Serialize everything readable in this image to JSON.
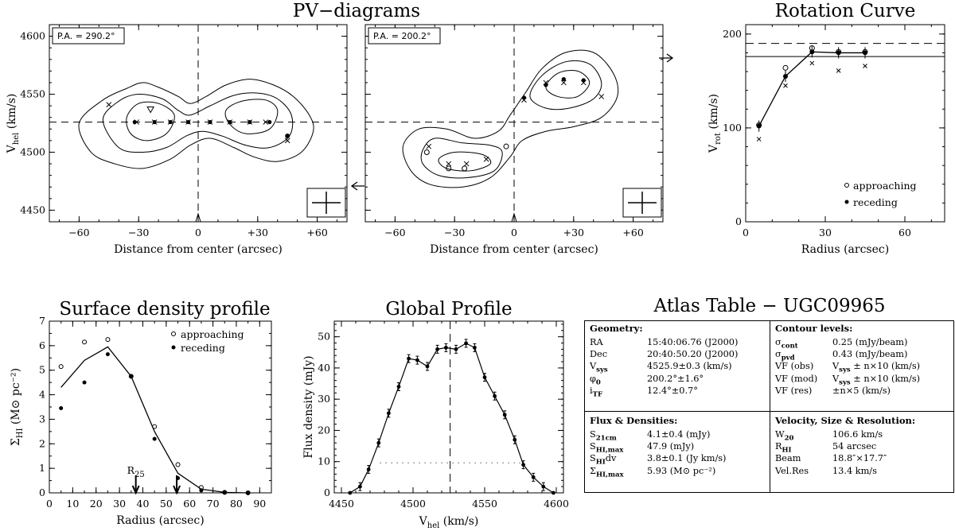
{
  "pv": {
    "title": "PV−diagrams",
    "panels": [
      {
        "pa_label": "P.A. = 290.2°",
        "xlabel": "Distance from center (arcsec)",
        "xticks": [
          "−60",
          "−30",
          "0",
          "+30",
          "+60"
        ]
      },
      {
        "pa_label": "P.A. = 200.2°",
        "xlabel": "Distance from center (arcsec)",
        "xticks": [
          "−60",
          "−30",
          "0",
          "+30",
          "+60"
        ]
      }
    ],
    "ylabel_main": "V",
    "ylabel_sub": "hel",
    "ylabel_unit": " (km/s)",
    "yticks": [
      "4450",
      "4500",
      "4550",
      "4600"
    ]
  },
  "rotation": {
    "title": "Rotation Curve",
    "xlabel": "Radius (arcsec)",
    "ylabel_main": "V",
    "ylabel_sub": "rot",
    "ylabel_unit": " (km/s)",
    "xticks": [
      "0",
      "30",
      "60"
    ],
    "yticks": [
      "0",
      "100",
      "200"
    ],
    "legend": [
      "approaching",
      "receding"
    ]
  },
  "surface": {
    "title": "Surface density profile",
    "xlabel": "Radius (arcsec)",
    "ylabel_main": "Σ",
    "ylabel_sub": "HI",
    "ylabel_unit": " (M⊙ pc⁻²)",
    "xticks": [
      "0",
      "10",
      "20",
      "30",
      "40",
      "50",
      "60",
      "70",
      "80",
      "90"
    ],
    "yticks": [
      "0",
      "1",
      "2",
      "3",
      "4",
      "5",
      "6",
      "7"
    ],
    "legend": [
      "approaching",
      "receding"
    ],
    "r25_main": "R",
    "r25_sub": "25"
  },
  "global": {
    "title": "Global Profile",
    "xlabel_main": "V",
    "xlabel_sub": "hel",
    "xlabel_unit": " (km/s)",
    "ylabel": "Flux density (mJy)",
    "xticks": [
      "4450",
      "4500",
      "4550",
      "4600"
    ],
    "yticks": [
      "0",
      "10",
      "20",
      "30",
      "40",
      "50"
    ]
  },
  "atlas": {
    "title": "Atlas Table − UGC09965",
    "geometry": {
      "heading": "Geometry:",
      "rows": [
        {
          "k": "RA",
          "v": "15:40:06.76 (J2000)"
        },
        {
          "k": "Dec",
          "v": "20:40:50.20 (J2000)"
        },
        {
          "k": "V",
          "ks": "sys",
          "v": "4525.9±0.3 (km/s)"
        },
        {
          "k": "φ",
          "ks": "0",
          "v": "200.2°±1.6°"
        },
        {
          "k": "i",
          "ks": "TF",
          "v": "12.4°±0.7°"
        }
      ]
    },
    "contour": {
      "heading": "Contour levels:",
      "rows": [
        {
          "k": "σ",
          "ks": "cont",
          "v": "0.25 (mJy/beam)"
        },
        {
          "k": "σ",
          "ks": "pvd",
          "v": "0.43 (mJy/beam)"
        },
        {
          "k": "VF (obs)",
          "v": "V",
          "vs": "sys",
          "vr": " ± n×10 (km/s)"
        },
        {
          "k": "VF (mod)",
          "v": "V",
          "vs": "sys",
          "vr": " ± n×10 (km/s)"
        },
        {
          "k": "VF (res)",
          "v": "±n×5 (km/s)"
        }
      ]
    },
    "flux": {
      "heading": "Flux & Densities:",
      "rows": [
        {
          "k": "S",
          "ks": "21cm",
          "v": "4.1±0.4 (mJy)"
        },
        {
          "k": "S",
          "ks": "HI,max",
          "v": "47.9 (mJy)"
        },
        {
          "k": "S",
          "ks": "HI",
          "kr": "dv",
          "v": "3.8±0.1 (Jy km/s)"
        },
        {
          "k": "Σ",
          "ks": "HI,max",
          "v": "5.93 (M⊙ pc⁻²)"
        }
      ]
    },
    "velocity": {
      "heading": "Velocity, Size & Resolution:",
      "rows": [
        {
          "k": "W",
          "ks": "20",
          "v": "106.6 km/s"
        },
        {
          "k": "R",
          "ks": "HI",
          "v": "54 arcsec"
        },
        {
          "k": "Beam",
          "v": "18.8″×17.7″"
        },
        {
          "k": "Vel.Res",
          "v": "13.4 km/s"
        }
      ]
    }
  },
  "chart_data": [
    {
      "type": "scatter",
      "name": "PV-diagram P.A. 290.2",
      "xlim": [
        -75,
        75
      ],
      "ylim": [
        4440,
        4610
      ],
      "vsys": 4525.9,
      "points_dot": [
        [
          -32,
          4526
        ],
        [
          -22,
          4526
        ],
        [
          -14,
          4526
        ],
        [
          -5,
          4526
        ],
        [
          6,
          4526
        ],
        [
          16,
          4526
        ],
        [
          26,
          4526
        ],
        [
          36,
          4526
        ]
      ],
      "points_cross": [
        [
          -45,
          4541
        ],
        [
          -31,
          4526
        ],
        [
          -22,
          4526
        ],
        [
          -14,
          4526
        ],
        [
          -5,
          4526
        ],
        [
          6,
          4526
        ],
        [
          16,
          4526
        ],
        [
          26,
          4526
        ],
        [
          34,
          4526
        ],
        [
          45,
          4510
        ]
      ],
      "points_tri": [
        [
          -24,
          4537
        ]
      ],
      "points_circle_filled": [
        [
          45,
          4514
        ]
      ],
      "contours": [
        [
          [
            -60,
            4525
          ],
          [
            -48,
            4545
          ],
          [
            -36,
            4555
          ],
          [
            -28,
            4560
          ],
          [
            -20,
            4556
          ],
          [
            -10,
            4548
          ],
          [
            -4,
            4542
          ],
          [
            4,
            4548
          ],
          [
            14,
            4558
          ],
          [
            26,
            4563
          ],
          [
            38,
            4558
          ],
          [
            48,
            4548
          ],
          [
            56,
            4532
          ],
          [
            58,
            4518
          ],
          [
            52,
            4500
          ],
          [
            40,
            4492
          ],
          [
            28,
            4496
          ],
          [
            18,
            4504
          ],
          [
            6,
            4512
          ],
          [
            -4,
            4506
          ],
          [
            -14,
            4494
          ],
          [
            -28,
            4486
          ],
          [
            -42,
            4490
          ],
          [
            -54,
            4500
          ]
        ],
        [
          [
            -48,
            4528
          ],
          [
            -40,
            4544
          ],
          [
            -30,
            4550
          ],
          [
            -18,
            4546
          ],
          [
            -10,
            4536
          ],
          [
            -4,
            4532
          ],
          [
            6,
            4540
          ],
          [
            18,
            4549
          ],
          [
            30,
            4551
          ],
          [
            40,
            4546
          ],
          [
            47,
            4532
          ],
          [
            46,
            4514
          ],
          [
            36,
            4504
          ],
          [
            24,
            4506
          ],
          [
            12,
            4514
          ],
          [
            2,
            4518
          ],
          [
            -6,
            4514
          ],
          [
            -16,
            4504
          ],
          [
            -28,
            4500
          ],
          [
            -40,
            4504
          ]
        ],
        [
          [
            -36,
            4530
          ],
          [
            -30,
            4542
          ],
          [
            -20,
            4542
          ],
          [
            -12,
            4532
          ],
          [
            -16,
            4516
          ],
          [
            -26,
            4510
          ],
          [
            -34,
            4516
          ]
        ],
        [
          [
            14,
            4536
          ],
          [
            22,
            4544
          ],
          [
            34,
            4545
          ],
          [
            40,
            4536
          ],
          [
            36,
            4520
          ],
          [
            24,
            4516
          ],
          [
            16,
            4524
          ]
        ]
      ]
    },
    {
      "type": "scatter",
      "name": "PV-diagram P.A. 200.2",
      "xlim": [
        -75,
        75
      ],
      "ylim": [
        4440,
        4610
      ],
      "vsys": 4525.9,
      "points_dot": [
        [
          5,
          4547
        ],
        [
          16,
          4558
        ],
        [
          25,
          4563
        ],
        [
          35,
          4562
        ]
      ],
      "points_cross": [
        [
          -43,
          4505
        ],
        [
          -33,
          4490
        ],
        [
          -24,
          4490
        ],
        [
          -14,
          4494
        ],
        [
          5,
          4545
        ],
        [
          16,
          4560
        ],
        [
          25,
          4560
        ],
        [
          35,
          4560
        ],
        [
          44,
          4548
        ]
      ],
      "points_circle_open": [
        [
          -44,
          4500
        ],
        [
          -33,
          4486
        ],
        [
          -25,
          4486
        ],
        [
          -4,
          4505
        ]
      ],
      "contours": [
        [
          [
            -56,
            4505
          ],
          [
            -48,
            4520
          ],
          [
            -34,
            4520
          ],
          [
            -20,
            4512
          ],
          [
            -8,
            4518
          ],
          [
            -2,
            4532
          ],
          [
            6,
            4552
          ],
          [
            14,
            4572
          ],
          [
            26,
            4586
          ],
          [
            40,
            4586
          ],
          [
            50,
            4568
          ],
          [
            52,
            4548
          ],
          [
            44,
            4530
          ],
          [
            30,
            4522
          ],
          [
            16,
            4518
          ],
          [
            4,
            4510
          ],
          [
            -2,
            4496
          ],
          [
            -12,
            4478
          ],
          [
            -26,
            4470
          ],
          [
            -42,
            4472
          ],
          [
            -52,
            4484
          ]
        ],
        [
          [
            -46,
            4502
          ],
          [
            -40,
            4512
          ],
          [
            -26,
            4508
          ],
          [
            -12,
            4506
          ],
          [
            -6,
            4500
          ],
          [
            -10,
            4484
          ],
          [
            -24,
            4478
          ],
          [
            -38,
            4480
          ],
          [
            -46,
            4490
          ]
        ],
        [
          [
            -38,
            4494
          ],
          [
            -30,
            4500
          ],
          [
            -16,
            4498
          ],
          [
            -12,
            4490
          ],
          [
            -22,
            4484
          ],
          [
            -34,
            4486
          ]
        ],
        [
          [
            8,
            4548
          ],
          [
            14,
            4566
          ],
          [
            26,
            4578
          ],
          [
            38,
            4576
          ],
          [
            44,
            4560
          ],
          [
            40,
            4546
          ],
          [
            28,
            4538
          ],
          [
            16,
            4538
          ]
        ],
        [
          [
            16,
            4556
          ],
          [
            22,
            4568
          ],
          [
            32,
            4570
          ],
          [
            38,
            4560
          ],
          [
            32,
            4548
          ],
          [
            22,
            4548
          ]
        ]
      ]
    },
    {
      "type": "line",
      "name": "Rotation Curve",
      "xlim": [
        0,
        75
      ],
      "ylim": [
        0,
        210
      ],
      "model_x": [
        5,
        15,
        25,
        35,
        45
      ],
      "model_y": [
        102,
        155,
        181,
        180,
        180
      ],
      "approaching": [
        [
          5,
          103
        ],
        [
          15,
          164
        ],
        [
          25,
          185
        ],
        [
          35,
          181
        ],
        [
          45,
          181
        ]
      ],
      "receding": [
        [
          5,
          102
        ],
        [
          15,
          155
        ],
        [
          25,
          181
        ],
        [
          35,
          180
        ],
        [
          45,
          180
        ]
      ],
      "crosses": [
        [
          5,
          88
        ],
        [
          15,
          145
        ],
        [
          25,
          169
        ],
        [
          35,
          161
        ],
        [
          45,
          166
        ]
      ],
      "hline_solid": 176,
      "hline_dashed": 190
    },
    {
      "type": "line",
      "name": "Surface density profile",
      "xlim": [
        0,
        95
      ],
      "ylim": [
        0,
        7
      ],
      "model_x": [
        5,
        15,
        25,
        35,
        45,
        55,
        65,
        75,
        85
      ],
      "model_y": [
        4.3,
        5.4,
        5.95,
        4.75,
        2.5,
        0.8,
        0.15,
        0.02,
        0.0
      ],
      "approaching": [
        [
          5,
          5.15
        ],
        [
          15,
          6.15
        ],
        [
          25,
          6.25
        ],
        [
          35,
          4.75
        ],
        [
          45,
          2.7
        ],
        [
          55,
          1.15
        ],
        [
          65,
          0.22
        ],
        [
          75,
          0.02
        ],
        [
          85,
          0.0
        ]
      ],
      "receding": [
        [
          5,
          3.45
        ],
        [
          15,
          4.5
        ],
        [
          25,
          5.65
        ],
        [
          35,
          4.75
        ],
        [
          45,
          2.2
        ],
        [
          55,
          0.6
        ],
        [
          65,
          0.1
        ],
        [
          75,
          0.01
        ],
        [
          85,
          0.0
        ]
      ],
      "r25_arrow_x": 37,
      "rhi_arrow_x": 54.5
    },
    {
      "type": "line",
      "name": "Global Profile",
      "xlim": [
        4445,
        4605
      ],
      "ylim": [
        0,
        55
      ],
      "x": [
        4456,
        4463,
        4469,
        4476,
        4483,
        4490,
        4497,
        4503,
        4510,
        4517,
        4523,
        4530,
        4537,
        4543,
        4550,
        4557,
        4564,
        4571,
        4577,
        4584,
        4591,
        4598
      ],
      "y": [
        0,
        2,
        7.5,
        16,
        25.5,
        34,
        43,
        42.5,
        40.5,
        46,
        46.5,
        46,
        47.9,
        46.5,
        37,
        31,
        25,
        17,
        9,
        5,
        2,
        0
      ],
      "vsys": 4525.9,
      "dotted_level": 9.6,
      "dotted_x": [
        4477,
        4578
      ]
    }
  ]
}
